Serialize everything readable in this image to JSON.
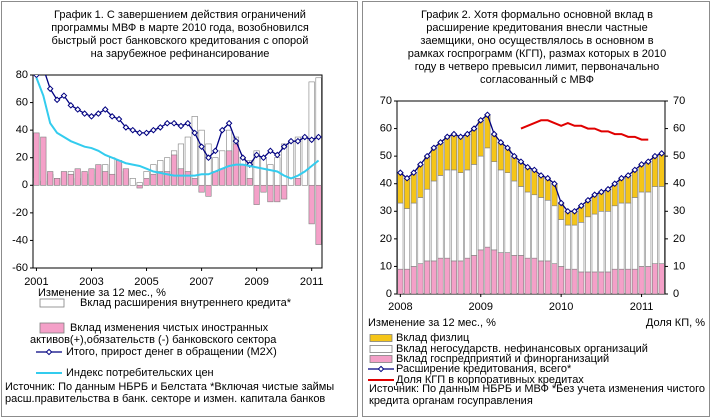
{
  "chart_data": [
    {
      "type": "bar",
      "stacked": false,
      "title": [
        "График 1. С завершением действия ограничений",
        "программы МВФ в марте 2010 года, возобновился",
        "быстрый  рост банковского кредитования с опорой",
        "на зарубежное рефинансирование"
      ],
      "y_label": "Изменение за 12 мес., %",
      "categories": [
        "2001",
        null,
        null,
        null,
        null,
        null,
        null,
        null,
        "2003",
        null,
        null,
        null,
        null,
        null,
        null,
        null,
        "2005",
        null,
        null,
        null,
        null,
        null,
        null,
        null,
        "2007",
        null,
        null,
        null,
        null,
        null,
        null,
        null,
        "2009",
        null,
        null,
        null,
        null,
        null,
        null,
        null,
        "2011",
        null
      ],
      "ylim": [
        -60,
        80
      ],
      "yticks": [
        -60,
        -40,
        -20,
        0,
        20,
        40,
        60,
        80
      ],
      "series": [
        {
          "name": "Вклад расширения внутреннего кредита*",
          "type": "bar",
          "color": "#ffffff",
          "values": [
            5,
            3,
            8,
            5,
            6,
            10,
            5,
            8,
            8,
            12,
            15,
            20,
            15,
            10,
            5,
            2,
            10,
            15,
            18,
            20,
            25,
            30,
            35,
            50,
            40,
            30,
            20,
            25,
            40,
            35,
            20,
            18,
            25,
            20,
            15,
            20,
            30,
            32,
            35,
            35,
            75,
            78
          ]
        },
        {
          "name": "Вклад изменения чистых иностранных активов(+),обязательств (-) банковского сектора",
          "type": "bar",
          "color": "#f4a0c8",
          "values": [
            38,
            35,
            10,
            5,
            10,
            8,
            12,
            10,
            12,
            15,
            10,
            8,
            18,
            12,
            0,
            -2,
            5,
            8,
            10,
            10,
            22,
            12,
            10,
            5,
            -5,
            -8,
            10,
            12,
            25,
            30,
            15,
            5,
            -14,
            -5,
            -12,
            -12,
            -10,
            0,
            5,
            0,
            -28,
            -43
          ]
        },
        {
          "name": "Итого, прирост денег в обращении (M2X)",
          "type": "line",
          "color": "#000080",
          "marker": "diamond",
          "values": [
            80,
            85,
            70,
            62,
            65,
            58,
            55,
            52,
            50,
            52,
            55,
            50,
            48,
            42,
            40,
            38,
            38,
            40,
            42,
            45,
            45,
            43,
            45,
            38,
            28,
            20,
            25,
            40,
            45,
            32,
            20,
            15,
            22,
            20,
            25,
            22,
            28,
            32,
            32,
            35,
            33,
            35
          ]
        },
        {
          "name": "Индекс потребительских цен",
          "type": "line",
          "color": "#33ccee",
          "values": [
            78,
            65,
            45,
            38,
            35,
            32,
            30,
            28,
            27,
            25,
            22,
            20,
            18,
            16,
            15,
            14,
            12,
            10,
            9,
            8,
            7,
            7,
            7,
            7,
            8,
            8,
            10,
            12,
            14,
            15,
            15,
            14,
            13,
            12,
            11,
            10,
            7,
            5,
            7,
            10,
            14,
            18
          ]
        }
      ],
      "source": "Источник: По данным НБРБ и Белстата *Включая чистые займы расш.правительства в банк. секторе и измен. капитала банков"
    },
    {
      "type": "bar",
      "stacked": true,
      "title": [
        "График 2. Хотя формально основной вклад в",
        "расширение кредитования внесли частные",
        "заемщики, оно осуществлялось в основном в",
        "рамках госпрограмм (КГП), размах которых в 2010",
        "году в четверо превысил лимит, первоначально",
        "согласованный с МВФ"
      ],
      "y_label": "Изменение за 12 мес., %",
      "y2_label": "Доля КП, %",
      "categories": [
        "2008",
        null,
        null,
        null,
        null,
        null,
        null,
        null,
        null,
        null,
        null,
        null,
        "2009",
        null,
        null,
        null,
        null,
        null,
        null,
        null,
        null,
        null,
        null,
        null,
        "2010",
        null,
        null,
        null,
        null,
        null,
        null,
        null,
        null,
        null,
        null,
        null,
        "2011",
        null,
        null,
        null
      ],
      "ylim": [
        0,
        70
      ],
      "yticks": [
        0,
        10,
        20,
        30,
        40,
        50,
        60,
        70
      ],
      "y2lim": [
        0,
        70
      ],
      "y2ticks": [
        0,
        10,
        20,
        30,
        40,
        50,
        60,
        70
      ],
      "series": [
        {
          "name": "Вклад физлиц",
          "type": "bar",
          "color": "#f5c518",
          "values": [
            11,
            11,
            11,
            12,
            12,
            12,
            12,
            12,
            13,
            13,
            13,
            13,
            13,
            12,
            10,
            10,
            9,
            9,
            9,
            9,
            9,
            8,
            8,
            8,
            6,
            5,
            5,
            6,
            6,
            7,
            7,
            8,
            8,
            9,
            10,
            10,
            10,
            11,
            11,
            12
          ]
        },
        {
          "name": "Вклад негосударств. нефинансовых организаций",
          "type": "bar",
          "color": "#ffffff",
          "values": [
            24,
            22,
            23,
            24,
            26,
            29,
            30,
            32,
            33,
            32,
            32,
            33,
            34,
            36,
            32,
            30,
            29,
            27,
            25,
            24,
            23,
            23,
            22,
            21,
            17,
            16,
            16,
            18,
            20,
            21,
            22,
            22,
            23,
            24,
            24,
            26,
            27,
            27,
            28,
            28
          ]
        },
        {
          "name": "Вклад госпредприятий и финорганизаций",
          "type": "bar",
          "color": "#f4a0c8",
          "values": [
            9,
            9,
            10,
            11,
            12,
            12,
            13,
            13,
            12,
            12,
            13,
            14,
            16,
            17,
            16,
            15,
            15,
            14,
            14,
            13,
            13,
            12,
            12,
            11,
            10,
            9,
            9,
            8,
            8,
            8,
            8,
            8,
            9,
            9,
            9,
            9,
            10,
            10,
            11,
            11
          ]
        },
        {
          "name": "Расширение кредитования, всего*",
          "type": "line",
          "color": "#000080",
          "marker": "diamond",
          "values": [
            44,
            42,
            44,
            47,
            50,
            53,
            55,
            57,
            58,
            57,
            58,
            60,
            63,
            65,
            58,
            55,
            53,
            50,
            48,
            46,
            45,
            43,
            42,
            40,
            33,
            30,
            30,
            32,
            34,
            36,
            37,
            38,
            40,
            42,
            43,
            45,
            47,
            48,
            50,
            51
          ]
        },
        {
          "name": "Доля КГП в корпоративных кредитах",
          "type": "line",
          "color": "#e00000",
          "axis": "y2",
          "values": [
            null,
            null,
            null,
            null,
            null,
            null,
            null,
            null,
            null,
            null,
            null,
            null,
            null,
            null,
            null,
            null,
            null,
            null,
            60,
            61,
            62,
            63,
            63,
            62,
            61,
            62,
            61,
            61,
            60,
            60,
            59,
            59,
            58,
            58,
            57,
            57,
            56,
            56,
            null,
            null
          ]
        }
      ],
      "source": "Источник: По данным НБРБ и МВФ *Без учета изменения чистого кредита органам госуправления"
    }
  ]
}
